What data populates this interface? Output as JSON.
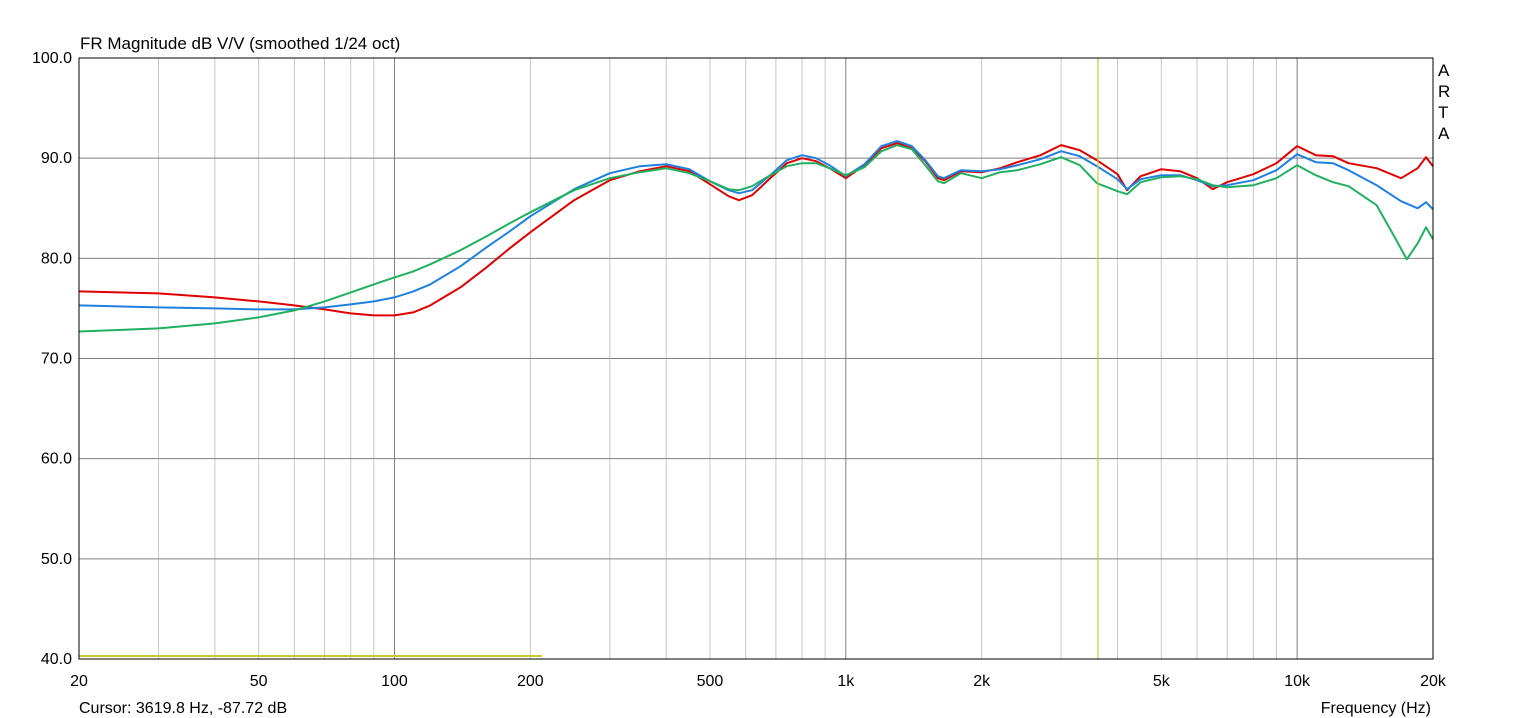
{
  "chart_data": {
    "type": "line",
    "title": "FR Magnitude dB V/V (smoothed 1/24 oct)",
    "xlabel": "Frequency (Hz)",
    "ylabel": "",
    "x_scale": "log",
    "xlim": [
      20,
      20000
    ],
    "ylim": [
      40,
      100
    ],
    "grid": true,
    "x_tick_labels": [
      {
        "value": 20,
        "label": "20"
      },
      {
        "value": 50,
        "label": "50"
      },
      {
        "value": 100,
        "label": "100"
      },
      {
        "value": 200,
        "label": "200"
      },
      {
        "value": 500,
        "label": "500"
      },
      {
        "value": 1000,
        "label": "1k"
      },
      {
        "value": 2000,
        "label": "2k"
      },
      {
        "value": 5000,
        "label": "5k"
      },
      {
        "value": 10000,
        "label": "10k"
      },
      {
        "value": 20000,
        "label": "20k"
      }
    ],
    "y_tick_labels": [
      {
        "value": 100,
        "label": "100.0"
      },
      {
        "value": 90,
        "label": "90.0"
      },
      {
        "value": 80,
        "label": "80.0"
      },
      {
        "value": 70,
        "label": "70.0"
      },
      {
        "value": 60,
        "label": "60.0"
      },
      {
        "value": 50,
        "label": "50.0"
      },
      {
        "value": 40,
        "label": "40.0"
      }
    ],
    "cursor": {
      "frequency": 3619.8,
      "color": "#c8c832"
    },
    "marker_line": {
      "x_start": 20,
      "x_end": 212,
      "y": 40.3,
      "color": "#c8c832"
    },
    "series": [
      {
        "color": "#e00000",
        "points": [
          [
            20,
            76.7
          ],
          [
            30,
            76.5
          ],
          [
            40,
            76.1
          ],
          [
            50,
            75.7
          ],
          [
            60,
            75.3
          ],
          [
            70,
            74.9
          ],
          [
            80,
            74.5
          ],
          [
            90,
            74.3
          ],
          [
            100,
            74.3
          ],
          [
            110,
            74.6
          ],
          [
            120,
            75.3
          ],
          [
            140,
            77.1
          ],
          [
            160,
            79.1
          ],
          [
            180,
            81.0
          ],
          [
            200,
            82.6
          ],
          [
            250,
            85.8
          ],
          [
            300,
            87.8
          ],
          [
            350,
            88.7
          ],
          [
            400,
            89.2
          ],
          [
            450,
            88.7
          ],
          [
            500,
            87.4
          ],
          [
            550,
            86.2
          ],
          [
            580,
            85.8
          ],
          [
            620,
            86.3
          ],
          [
            680,
            88.0
          ],
          [
            740,
            89.5
          ],
          [
            800,
            90.0
          ],
          [
            860,
            89.7
          ],
          [
            920,
            89.0
          ],
          [
            1000,
            88.0
          ],
          [
            1100,
            89.3
          ],
          [
            1200,
            91.0
          ],
          [
            1300,
            91.5
          ],
          [
            1400,
            91.0
          ],
          [
            1500,
            89.7
          ],
          [
            1600,
            88.0
          ],
          [
            1650,
            87.8
          ],
          [
            1800,
            88.7
          ],
          [
            2000,
            88.6
          ],
          [
            2200,
            89.0
          ],
          [
            2400,
            89.6
          ],
          [
            2700,
            90.3
          ],
          [
            3000,
            91.3
          ],
          [
            3300,
            90.8
          ],
          [
            3600,
            89.8
          ],
          [
            4000,
            88.4
          ],
          [
            4200,
            86.8
          ],
          [
            4500,
            88.2
          ],
          [
            5000,
            88.9
          ],
          [
            5500,
            88.7
          ],
          [
            6000,
            88.0
          ],
          [
            6500,
            86.9
          ],
          [
            7000,
            87.6
          ],
          [
            8000,
            88.4
          ],
          [
            9000,
            89.5
          ],
          [
            10000,
            91.2
          ],
          [
            11000,
            90.3
          ],
          [
            12000,
            90.2
          ],
          [
            13000,
            89.5
          ],
          [
            15000,
            89.0
          ],
          [
            17000,
            88.0
          ],
          [
            18500,
            89.0
          ],
          [
            19300,
            90.1
          ],
          [
            20000,
            89.2
          ]
        ]
      },
      {
        "color": "#2080e0",
        "points": [
          [
            20,
            75.3
          ],
          [
            30,
            75.1
          ],
          [
            40,
            75.0
          ],
          [
            50,
            74.9
          ],
          [
            60,
            74.9
          ],
          [
            70,
            75.1
          ],
          [
            80,
            75.4
          ],
          [
            90,
            75.7
          ],
          [
            100,
            76.1
          ],
          [
            110,
            76.7
          ],
          [
            120,
            77.4
          ],
          [
            140,
            79.2
          ],
          [
            160,
            81.1
          ],
          [
            180,
            82.7
          ],
          [
            200,
            84.2
          ],
          [
            250,
            86.9
          ],
          [
            300,
            88.5
          ],
          [
            350,
            89.2
          ],
          [
            400,
            89.4
          ],
          [
            450,
            88.9
          ],
          [
            500,
            87.7
          ],
          [
            550,
            86.8
          ],
          [
            580,
            86.5
          ],
          [
            620,
            86.8
          ],
          [
            680,
            88.3
          ],
          [
            740,
            89.8
          ],
          [
            800,
            90.3
          ],
          [
            860,
            90.0
          ],
          [
            920,
            89.3
          ],
          [
            1000,
            88.2
          ],
          [
            1100,
            89.4
          ],
          [
            1200,
            91.2
          ],
          [
            1300,
            91.7
          ],
          [
            1400,
            91.2
          ],
          [
            1500,
            89.8
          ],
          [
            1600,
            88.2
          ],
          [
            1650,
            88.0
          ],
          [
            1800,
            88.8
          ],
          [
            2000,
            88.7
          ],
          [
            2200,
            88.9
          ],
          [
            2400,
            89.3
          ],
          [
            2700,
            89.9
          ],
          [
            3000,
            90.7
          ],
          [
            3300,
            90.2
          ],
          [
            3600,
            89.2
          ],
          [
            4000,
            87.9
          ],
          [
            4200,
            86.9
          ],
          [
            4500,
            87.9
          ],
          [
            5000,
            88.3
          ],
          [
            5500,
            88.3
          ],
          [
            6000,
            87.8
          ],
          [
            6500,
            87.2
          ],
          [
            7000,
            87.3
          ],
          [
            8000,
            87.8
          ],
          [
            9000,
            88.8
          ],
          [
            10000,
            90.4
          ],
          [
            11000,
            89.6
          ],
          [
            12000,
            89.5
          ],
          [
            13000,
            88.8
          ],
          [
            15000,
            87.3
          ],
          [
            17000,
            85.7
          ],
          [
            18500,
            85.0
          ],
          [
            19300,
            85.6
          ],
          [
            20000,
            84.9
          ]
        ]
      },
      {
        "color": "#20b060",
        "points": [
          [
            20,
            72.7
          ],
          [
            30,
            73.0
          ],
          [
            40,
            73.5
          ],
          [
            50,
            74.1
          ],
          [
            60,
            74.8
          ],
          [
            70,
            75.7
          ],
          [
            80,
            76.6
          ],
          [
            90,
            77.4
          ],
          [
            100,
            78.1
          ],
          [
            110,
            78.7
          ],
          [
            120,
            79.4
          ],
          [
            140,
            80.8
          ],
          [
            160,
            82.2
          ],
          [
            180,
            83.5
          ],
          [
            200,
            84.6
          ],
          [
            250,
            86.8
          ],
          [
            300,
            88.0
          ],
          [
            350,
            88.6
          ],
          [
            400,
            89.0
          ],
          [
            450,
            88.5
          ],
          [
            500,
            87.7
          ],
          [
            550,
            86.9
          ],
          [
            580,
            86.8
          ],
          [
            620,
            87.2
          ],
          [
            680,
            88.3
          ],
          [
            740,
            89.2
          ],
          [
            800,
            89.5
          ],
          [
            860,
            89.5
          ],
          [
            920,
            89.0
          ],
          [
            1000,
            88.3
          ],
          [
            1100,
            89.1
          ],
          [
            1200,
            90.7
          ],
          [
            1300,
            91.3
          ],
          [
            1400,
            90.9
          ],
          [
            1500,
            89.3
          ],
          [
            1600,
            87.7
          ],
          [
            1650,
            87.5
          ],
          [
            1800,
            88.5
          ],
          [
            2000,
            88.0
          ],
          [
            2200,
            88.6
          ],
          [
            2400,
            88.8
          ],
          [
            2700,
            89.4
          ],
          [
            3000,
            90.1
          ],
          [
            3300,
            89.3
          ],
          [
            3600,
            87.5
          ],
          [
            4000,
            86.7
          ],
          [
            4200,
            86.4
          ],
          [
            4500,
            87.6
          ],
          [
            5000,
            88.1
          ],
          [
            5500,
            88.2
          ],
          [
            6000,
            87.9
          ],
          [
            6500,
            87.3
          ],
          [
            7000,
            87.1
          ],
          [
            8000,
            87.3
          ],
          [
            9000,
            88.0
          ],
          [
            10000,
            89.3
          ],
          [
            11000,
            88.3
          ],
          [
            12000,
            87.6
          ],
          [
            13000,
            87.2
          ],
          [
            15000,
            85.3
          ],
          [
            16500,
            82.0
          ],
          [
            17500,
            79.9
          ],
          [
            18500,
            81.5
          ],
          [
            19300,
            83.1
          ],
          [
            20000,
            81.9
          ]
        ]
      }
    ]
  },
  "watermark": [
    "A",
    "R",
    "T",
    "A"
  ],
  "footer": {
    "cursor_readout": "Cursor: 3619.8 Hz, -87.72 dB",
    "x_axis_label": "Frequency (Hz)"
  }
}
